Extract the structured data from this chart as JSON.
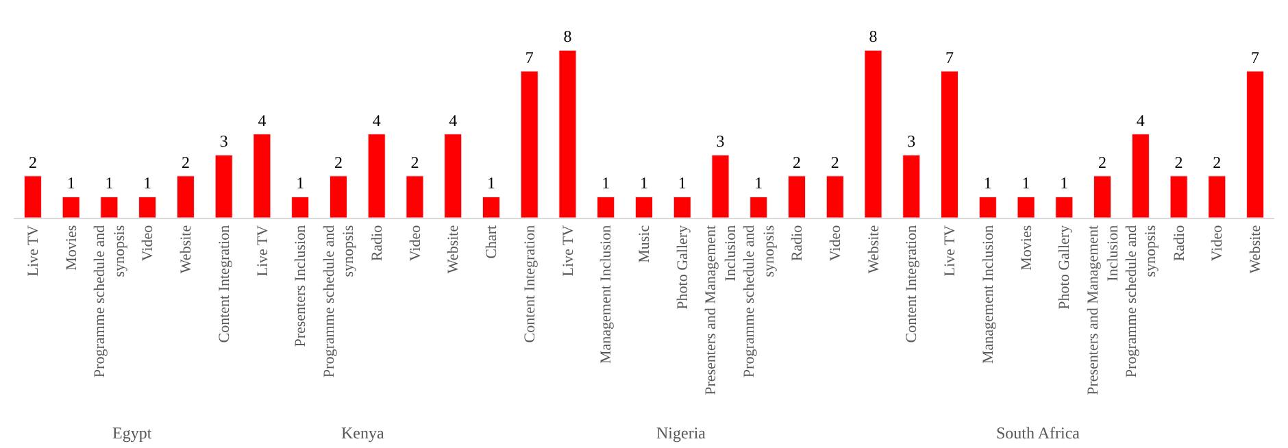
{
  "chart_data": [
    {
      "type": "bar",
      "xlabel": "Egypt",
      "categories": [
        "Live TV",
        "Movies",
        "Programme schedule and synopsis",
        "Video",
        "Website"
      ],
      "values": [
        2,
        1,
        1,
        1,
        2
      ],
      "color": "#ff0000",
      "data_labels": true,
      "tick_labels": "x"
    },
    {
      "type": "bar",
      "xlabel": "Kenya",
      "categories": [
        "Content Integration",
        "Live TV",
        "Presenters Inclusion",
        "Programme schedule and synopsis",
        "Radio",
        "Video",
        "Website"
      ],
      "values": [
        3,
        4,
        1,
        2,
        4,
        2,
        4
      ],
      "color": "#ff0000",
      "data_labels": true,
      "tick_labels": "x"
    },
    {
      "type": "bar",
      "xlabel": "Nigeria",
      "categories": [
        "Chart",
        "Content Integration",
        "Live TV",
        "Management Inclusion",
        "Music",
        "Photo Gallery",
        "Presenters and Management Inclusion",
        "Programme schedule and synopsis",
        "Radio",
        "Video",
        "Website"
      ],
      "values": [
        1,
        7,
        8,
        1,
        1,
        1,
        3,
        1,
        2,
        2,
        8
      ],
      "color": "#ff0000",
      "data_labels": true,
      "tick_labels": "x"
    },
    {
      "type": "bar",
      "xlabel": "South Africa",
      "categories": [
        "Content Integration",
        "Live TV",
        "Management Inclusion",
        "Movies",
        "Photo Gallery",
        "Presenters and Management Inclusion",
        "Programme schedule and synopsis",
        "Radio",
        "Video",
        "Website"
      ],
      "values": [
        3,
        7,
        1,
        1,
        1,
        2,
        4,
        2,
        2,
        7
      ],
      "color": "#ff0000",
      "data_labels": true,
      "tick_labels": "x"
    }
  ]
}
